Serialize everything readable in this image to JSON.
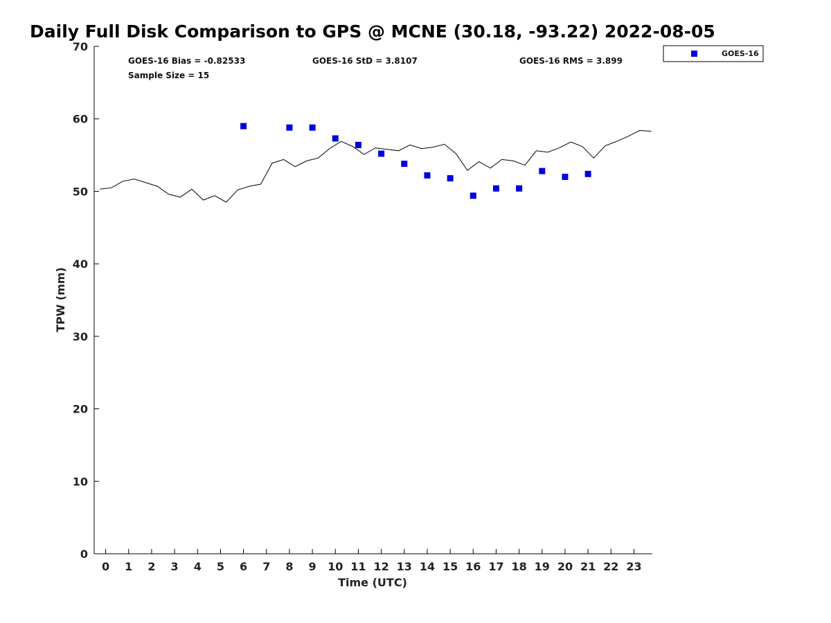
{
  "chart_data": {
    "type": "scatter",
    "title": "Daily Full Disk Comparison to GPS @ MCNE (30.18, -93.22) 2022-08-05",
    "xlabel": "Time (UTC)",
    "ylabel": "TPW (mm)",
    "xlim": [
      -0.5,
      23.8
    ],
    "ylim": [
      0,
      70
    ],
    "x_ticks": [
      0,
      1,
      2,
      3,
      4,
      5,
      6,
      7,
      8,
      9,
      10,
      11,
      12,
      13,
      14,
      15,
      16,
      17,
      18,
      19,
      20,
      21,
      22,
      23
    ],
    "x_tick_labels": [
      "0",
      "1",
      "2",
      "3",
      "4",
      "5",
      "6",
      "7",
      "8",
      "9",
      "10",
      "11",
      "12",
      "13",
      "14",
      "15",
      "16",
      "17",
      "18",
      "19",
      "20",
      "21",
      "22",
      "23"
    ],
    "y_ticks": [
      0,
      10,
      20,
      30,
      40,
      50,
      60,
      70
    ],
    "y_tick_labels": [
      "0",
      "10",
      "20",
      "30",
      "40",
      "50",
      "60",
      "70"
    ],
    "grid": false,
    "legend_position": "outside top-right",
    "series": [
      {
        "name": "GOES-16",
        "kind": "scatter",
        "marker": "square",
        "color": "#0000dd",
        "x": [
          6,
          8,
          9,
          10,
          11,
          12,
          13,
          14,
          15,
          16,
          17,
          18,
          19,
          20,
          21
        ],
        "y": [
          59.0,
          58.8,
          58.8,
          57.3,
          56.4,
          55.2,
          53.8,
          52.2,
          51.8,
          49.4,
          50.4,
          50.4,
          52.8,
          52.0,
          52.4
        ]
      },
      {
        "kind": "line",
        "color": "#000000",
        "x": [
          -0.25,
          0.25,
          0.75,
          1.25,
          1.75,
          2.25,
          2.75,
          3.25,
          3.75,
          4.25,
          4.75,
          5.25,
          5.75,
          6.25,
          6.75,
          7.25,
          7.75,
          8.25,
          8.75,
          9.25,
          9.75,
          10.25,
          10.75,
          11.25,
          11.75,
          12.25,
          12.75,
          13.25,
          13.75,
          14.25,
          14.75,
          15.25,
          15.75,
          16.25,
          16.75,
          17.25,
          17.75,
          18.25,
          18.75,
          19.25,
          19.75,
          20.25,
          20.75,
          21.25,
          21.75,
          22.25,
          22.75,
          23.25,
          23.75
        ],
        "y": [
          50.3,
          50.5,
          51.4,
          51.7,
          51.2,
          50.7,
          49.6,
          49.2,
          50.3,
          48.8,
          49.4,
          48.5,
          50.2,
          50.7,
          51.0,
          53.9,
          54.4,
          53.4,
          54.2,
          54.6,
          55.9,
          56.9,
          56.2,
          55.1,
          56.0,
          55.8,
          55.6,
          56.4,
          55.9,
          56.1,
          56.5,
          55.2,
          52.9,
          54.1,
          53.2,
          54.4,
          54.2,
          53.6,
          55.6,
          55.4,
          56.0,
          56.8,
          56.2,
          54.6,
          56.3,
          56.9,
          57.6,
          58.4,
          58.3
        ]
      }
    ],
    "annotations": {
      "bias": "GOES-16 Bias = -0.82533",
      "std": "GOES-16 StD = 3.8107",
      "rms": "GOES-16 RMS = 3.899",
      "sample_size": "Sample Size = 15"
    },
    "legend": {
      "entries": [
        "GOES-16"
      ]
    }
  }
}
